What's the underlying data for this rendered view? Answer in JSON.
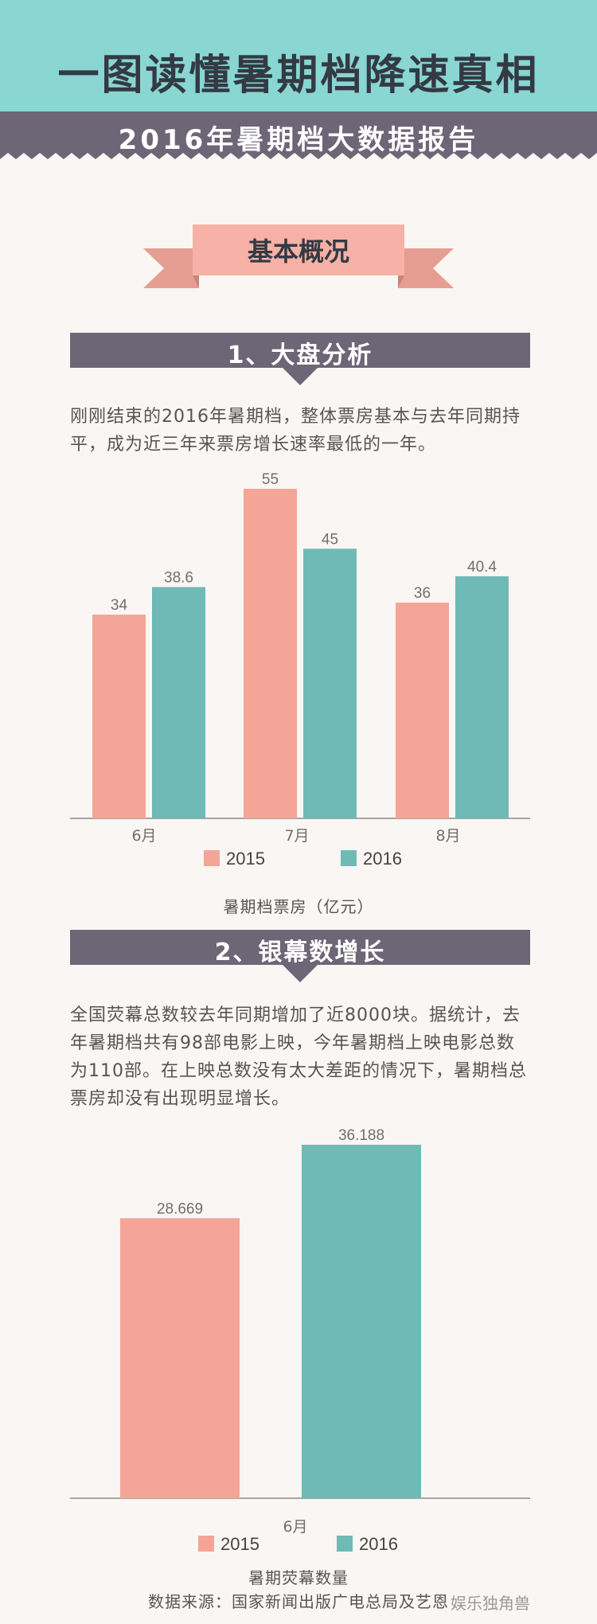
{
  "header": {
    "title": "一图读懂暑期档降速真相",
    "subtitle": "2016年暑期档大数据报告"
  },
  "section_banner": "基本概况",
  "colors": {
    "teal": "#6fbab6",
    "salmon": "#f4a598",
    "header_gray": "#6d6677",
    "top_band": "#89d6d2"
  },
  "section1": {
    "heading": "1、大盘分析",
    "paragraph": "刚刚结束的2016年暑期档，整体票房基本与去年同期持平，成为近三年来票房增长速率最低的一年。",
    "caption": "暑期档票房（亿元）"
  },
  "section2": {
    "heading": "2、银幕数增长",
    "paragraph": "全国荧幕总数较去年同期增加了近8000块。据统计，去年暑期档共有98部电影上映，今年暑期档上映电影总数为110部。在上映总数没有太大差距的情况下，暑期档总票房却没有出现明显增长。",
    "caption": "暑期荧幕数量"
  },
  "footer": {
    "source": "数据来源：国家新闻出版广电总局及艺恩",
    "watermark": "娱乐独角兽"
  },
  "chart_data": [
    {
      "type": "bar",
      "categories": [
        "6月",
        "7月",
        "8月"
      ],
      "series": [
        {
          "name": "2015",
          "values": [
            34,
            55,
            36
          ],
          "color": "#f4a598"
        },
        {
          "name": "2016",
          "values": [
            38.6,
            45,
            40.4
          ],
          "color": "#6fbab6"
        }
      ],
      "value_labels": [
        [
          "34",
          "55",
          "36"
        ],
        [
          "38.6",
          "45",
          "40.4"
        ]
      ],
      "ylim": [
        0,
        55
      ],
      "grid": false,
      "legend": "bottom"
    },
    {
      "type": "bar",
      "categories": [
        "6月"
      ],
      "series": [
        {
          "name": "2015",
          "values": [
            28.669
          ],
          "color": "#f4a598"
        },
        {
          "name": "2016",
          "values": [
            36.188
          ],
          "color": "#6fbab6"
        }
      ],
      "value_labels": [
        [
          "28.669"
        ],
        [
          "36.188"
        ]
      ],
      "ylim": [
        0,
        36.188
      ],
      "grid": false,
      "legend": "bottom"
    }
  ]
}
